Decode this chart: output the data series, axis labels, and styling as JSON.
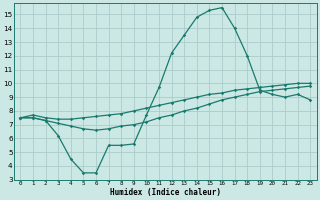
{
  "xlabel": "Humidex (Indice chaleur)",
  "x_ticks": [
    0,
    1,
    2,
    3,
    4,
    5,
    6,
    7,
    8,
    9,
    10,
    11,
    12,
    13,
    14,
    15,
    16,
    17,
    18,
    19,
    20,
    21,
    22,
    23
  ],
  "xlim": [
    -0.5,
    23.5
  ],
  "ylim": [
    3,
    15.8
  ],
  "y_ticks": [
    3,
    4,
    5,
    6,
    7,
    8,
    9,
    10,
    11,
    12,
    13,
    14,
    15
  ],
  "bg_color": "#cce8e4",
  "grid_color": "#aaccca",
  "line_color": "#1a7a6e",
  "line1_y": [
    7.5,
    7.7,
    7.5,
    7.4,
    7.4,
    7.5,
    7.6,
    7.7,
    7.8,
    8.0,
    8.2,
    8.4,
    8.6,
    8.8,
    9.0,
    9.2,
    9.3,
    9.5,
    9.6,
    9.7,
    9.8,
    9.9,
    10.0,
    10.0
  ],
  "line2_y": [
    7.5,
    7.5,
    7.3,
    6.2,
    4.5,
    3.5,
    3.5,
    5.5,
    5.5,
    5.6,
    7.7,
    9.7,
    12.2,
    13.5,
    14.8,
    15.3,
    15.5,
    14.0,
    12.0,
    9.5,
    9.2,
    9.0,
    9.2,
    8.8
  ],
  "line3_y": [
    7.5,
    7.5,
    7.3,
    7.1,
    6.9,
    6.7,
    6.6,
    6.7,
    6.9,
    7.0,
    7.2,
    7.5,
    7.7,
    8.0,
    8.2,
    8.5,
    8.8,
    9.0,
    9.2,
    9.4,
    9.5,
    9.6,
    9.7,
    9.8
  ]
}
